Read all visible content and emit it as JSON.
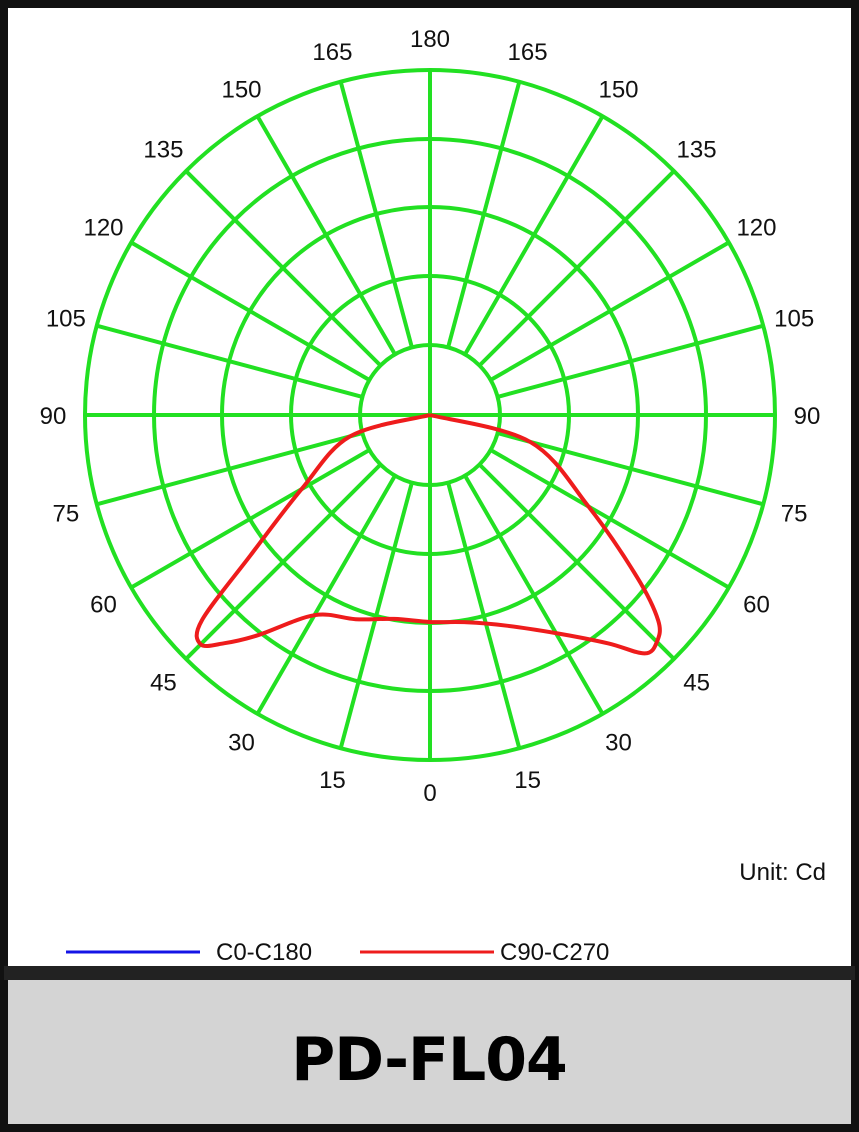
{
  "chart_data": {
    "type": "polar",
    "subtype": "luminous intensity distribution",
    "angle_labels_left": [
      "0",
      "15",
      "30",
      "45",
      "60",
      "75",
      "90",
      "105",
      "120",
      "135",
      "150",
      "165",
      "180"
    ],
    "angle_labels_right": [
      "15",
      "30",
      "45",
      "60",
      "75",
      "90",
      "105",
      "120",
      "135",
      "150",
      "165"
    ],
    "ring_count": 5,
    "spoke_step_deg": 15,
    "grid_color": "#22e022",
    "unit_label": "Unit: Cd",
    "legend_position": "bottom",
    "series": [
      {
        "name": "C0-C180",
        "color": "#1414e6",
        "points": []
      },
      {
        "name": "C90-C270",
        "color": "#ee1c1c",
        "unit": "fraction of outer ring radius",
        "points": [
          {
            "angle": -90,
            "r": 0.0
          },
          {
            "angle": -75,
            "r": 0.24
          },
          {
            "angle": -60,
            "r": 0.43
          },
          {
            "angle": -52,
            "r": 0.66
          },
          {
            "angle": -48,
            "r": 0.89
          },
          {
            "angle": -45,
            "r": 0.94
          },
          {
            "angle": -42,
            "r": 0.89
          },
          {
            "angle": -38,
            "r": 0.81
          },
          {
            "angle": -30,
            "r": 0.67
          },
          {
            "angle": -20,
            "r": 0.63
          },
          {
            "angle": -10,
            "r": 0.6
          },
          {
            "angle": 0,
            "r": 0.6
          },
          {
            "angle": 10,
            "r": 0.61
          },
          {
            "angle": 20,
            "r": 0.65
          },
          {
            "angle": 30,
            "r": 0.73
          },
          {
            "angle": 38,
            "r": 0.84
          },
          {
            "angle": 42,
            "r": 0.93
          },
          {
            "angle": 45,
            "r": 0.93
          },
          {
            "angle": 48,
            "r": 0.89
          },
          {
            "angle": 52,
            "r": 0.76
          },
          {
            "angle": 60,
            "r": 0.53
          },
          {
            "angle": 75,
            "r": 0.3
          },
          {
            "angle": 90,
            "r": 0.0
          }
        ]
      }
    ]
  },
  "product_label": "PD-FL04"
}
